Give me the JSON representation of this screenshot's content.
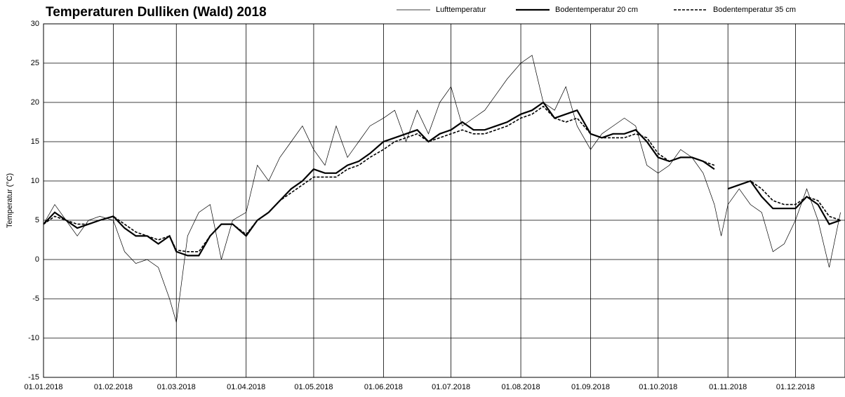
{
  "chart_data": {
    "type": "line",
    "title": "Temperaturen Dulliken (Wald) 2018",
    "y_label": "Temperatur (°C)",
    "x": [
      "01.01.2018",
      "06.01.2018",
      "11.01.2018",
      "16.01.2018",
      "21.01.2018",
      "26.01.2018",
      "01.02.2018",
      "06.02.2018",
      "11.02.2018",
      "16.02.2018",
      "21.02.2018",
      "26.02.2018",
      "01.03.2018",
      "06.03.2018",
      "11.03.2018",
      "16.03.2018",
      "21.03.2018",
      "26.03.2018",
      "01.04.2018",
      "06.04.2018",
      "11.04.2018",
      "16.04.2018",
      "21.04.2018",
      "26.04.2018",
      "01.05.2018",
      "06.05.2018",
      "11.05.2018",
      "16.05.2018",
      "21.05.2018",
      "26.05.2018",
      "01.06.2018",
      "06.06.2018",
      "11.06.2018",
      "16.06.2018",
      "21.06.2018",
      "26.06.2018",
      "01.07.2018",
      "06.07.2018",
      "11.07.2018",
      "16.07.2018",
      "21.07.2018",
      "26.07.2018",
      "01.08.2018",
      "06.08.2018",
      "11.08.2018",
      "16.08.2018",
      "21.08.2018",
      "26.08.2018",
      "01.09.2018",
      "06.09.2018",
      "11.09.2018",
      "16.09.2018",
      "21.09.2018",
      "26.09.2018",
      "01.10.2018",
      "06.10.2018",
      "11.10.2018",
      "16.10.2018",
      "21.10.2018",
      "26.10.2018",
      "29.10.2018",
      "01.11.2018",
      "06.11.2018",
      "11.11.2018",
      "16.11.2018",
      "21.11.2018",
      "26.11.2018",
      "01.12.2018",
      "06.12.2018",
      "11.12.2018",
      "16.12.2018",
      "21.12.2018"
    ],
    "series": [
      {
        "name": "Lufttemperatur",
        "color": "#000000",
        "line_style": "thin",
        "values": [
          4.5,
          7,
          5,
          3,
          5,
          5.5,
          5,
          1,
          -0.5,
          0,
          -1,
          -5,
          -8,
          3,
          6,
          7,
          0,
          5,
          6,
          12,
          10,
          13,
          15,
          17,
          14,
          12,
          17,
          13,
          15,
          17,
          18,
          19,
          15,
          19,
          16,
          20,
          22,
          17,
          18,
          19,
          21,
          23,
          25,
          26,
          20,
          19,
          22,
          17,
          14,
          16,
          17,
          18,
          17,
          12,
          11,
          12,
          14,
          13,
          11,
          7,
          3,
          7,
          9,
          7,
          6,
          1,
          2,
          5,
          9,
          5,
          -1,
          6
        ]
      },
      {
        "name": "Bodentemperatur 20 cm",
        "color": "#000000",
        "line_style": "bold",
        "values": [
          4.5,
          6,
          5,
          4,
          4.5,
          5,
          5.5,
          4,
          3,
          3,
          2,
          3,
          1,
          0.5,
          0.5,
          3,
          4.5,
          4.5,
          3,
          5,
          6,
          7.5,
          9,
          10,
          11.5,
          11,
          11,
          12,
          12.5,
          13.5,
          15,
          15.5,
          16,
          16.5,
          15,
          16,
          16.5,
          17.5,
          16.5,
          16.5,
          17,
          17.5,
          18.5,
          19,
          20,
          18,
          18.5,
          19,
          16,
          15.5,
          16,
          16,
          16.5,
          15,
          13,
          12.5,
          13,
          13,
          12.5,
          11.5,
          null,
          9,
          9.5,
          10,
          8,
          6.5,
          6.5,
          6.5,
          8,
          7,
          4.5,
          5
        ]
      },
      {
        "name": "Bodentemperatur 35 cm",
        "color": "#000000",
        "line_style": "dashed",
        "values": [
          4.5,
          5.5,
          5,
          4.5,
          4.5,
          5,
          5.5,
          4.5,
          3.5,
          3,
          2.5,
          3,
          1.2,
          1,
          1,
          3,
          4.5,
          4.5,
          3.2,
          5,
          6,
          7.5,
          8.5,
          9.5,
          10.5,
          10.5,
          10.5,
          11.5,
          12,
          13,
          14,
          15,
          15.5,
          16,
          15,
          15.5,
          16,
          16.5,
          16,
          16,
          16.5,
          17,
          18,
          18.5,
          19.5,
          18,
          17.5,
          18,
          16,
          15.5,
          15.5,
          15.5,
          16,
          15.5,
          13.5,
          12.5,
          13,
          13,
          12.5,
          12,
          null,
          9,
          9.5,
          10,
          9,
          7.5,
          7,
          7,
          8,
          7.5,
          5.5,
          5
        ]
      }
    ],
    "xlim": [
      "01.01.2018",
      "23.12.2018"
    ],
    "xticks": [
      "01.01.2018",
      "01.02.2018",
      "01.03.2018",
      "01.04.2018",
      "01.05.2018",
      "01.06.2018",
      "01.07.2018",
      "01.08.2018",
      "01.09.2018",
      "01.10.2018",
      "01.11.2018",
      "01.12.2018"
    ],
    "ylim": [
      -15,
      30
    ],
    "yticks": [
      -15,
      -10,
      -5,
      0,
      5,
      10,
      15,
      20,
      25,
      30
    ],
    "grid": true,
    "legend": "top"
  }
}
